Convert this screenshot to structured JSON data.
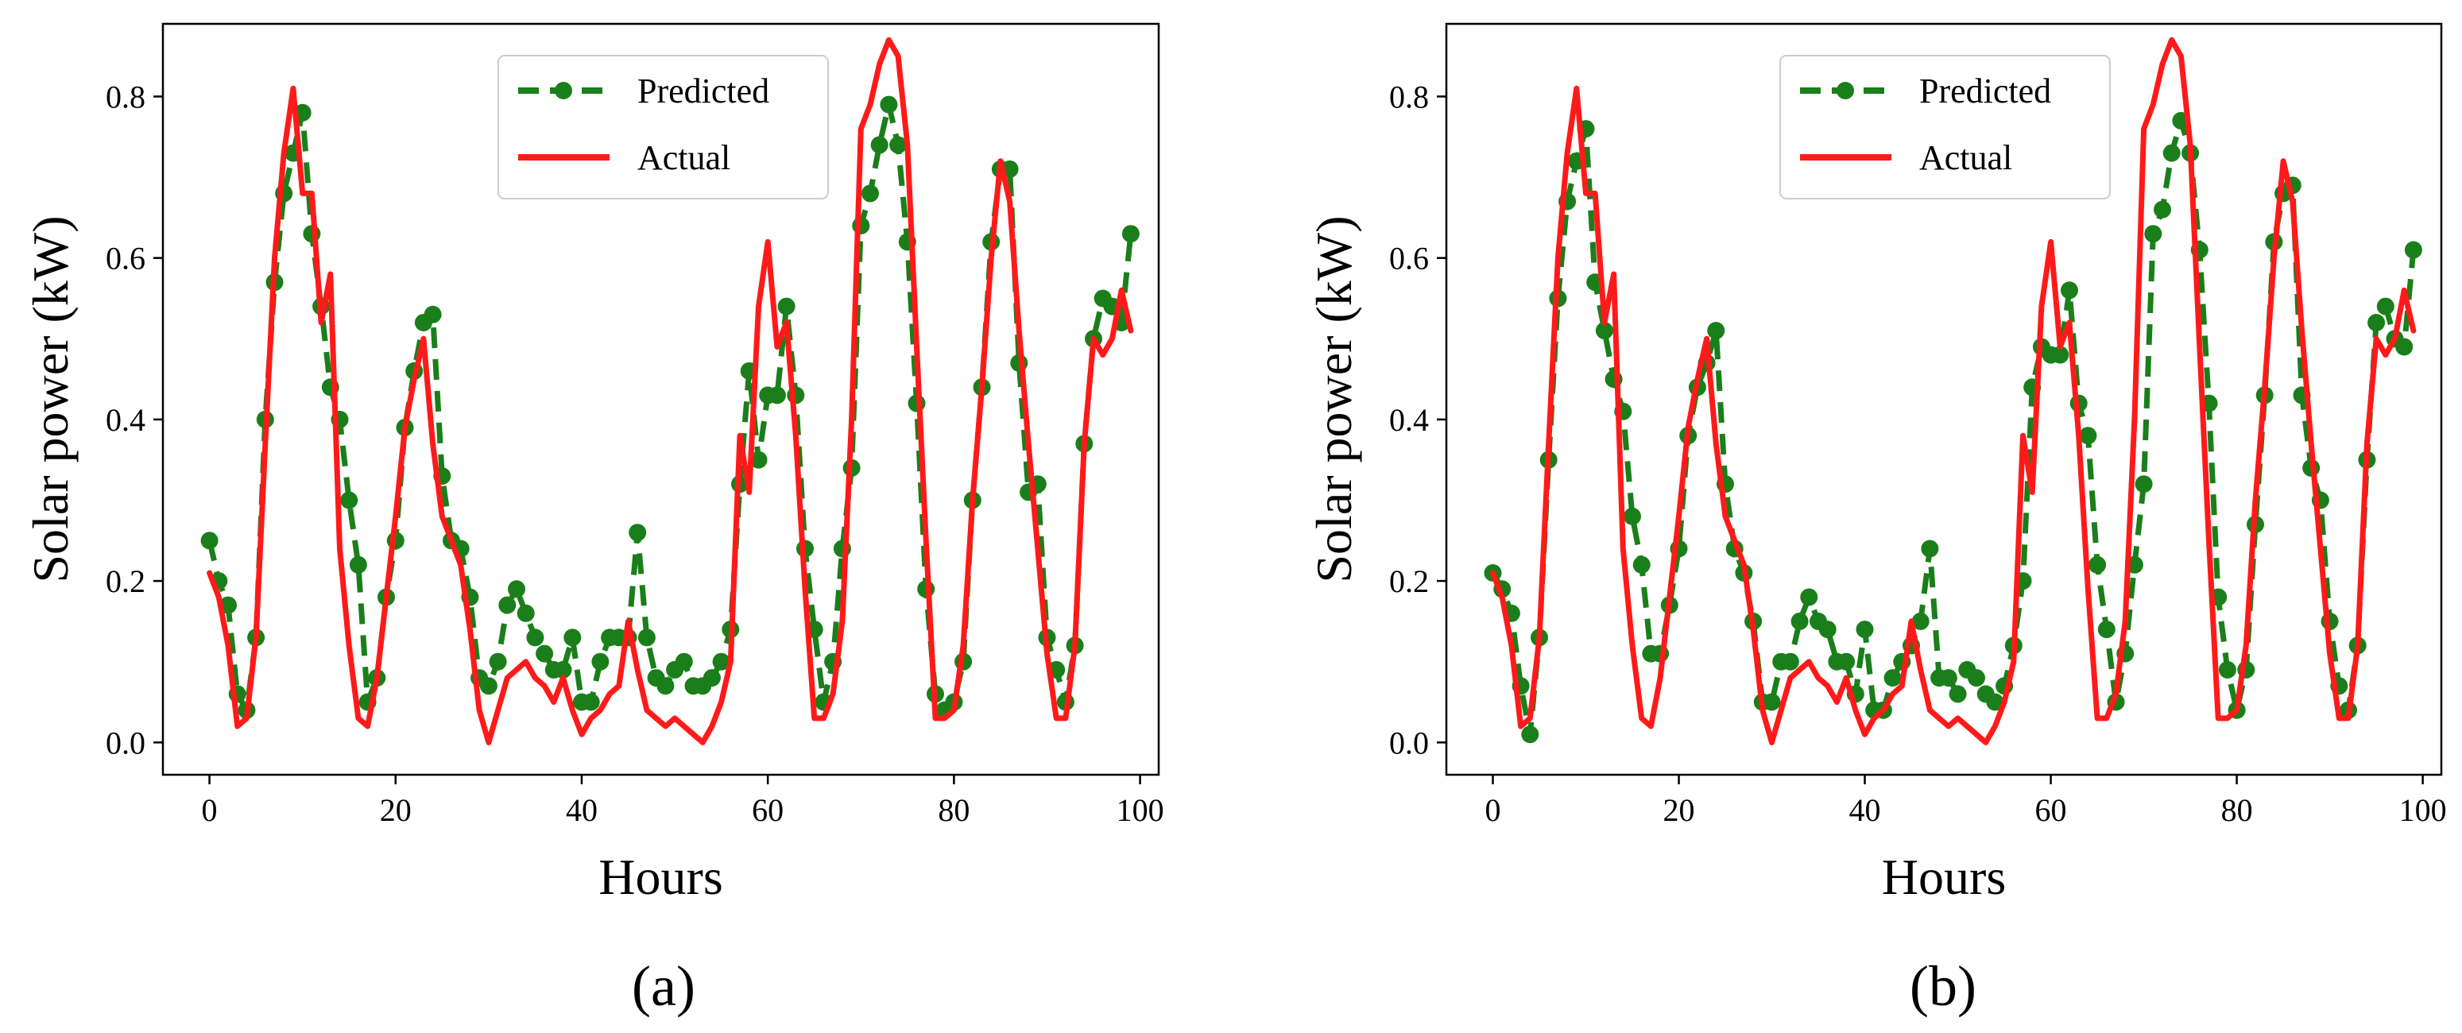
{
  "colors": {
    "predicted": "#1a7f1a",
    "actual": "#ff1a1a",
    "axis": "#000000"
  },
  "chart_data": [
    {
      "type": "line",
      "panel_label": "(a)",
      "xlabel": "Hours",
      "ylabel": "Solar power  (kW)",
      "xlim": [
        -5,
        102
      ],
      "ylim": [
        -0.04,
        0.89
      ],
      "xticks": [
        0,
        20,
        40,
        60,
        80,
        100
      ],
      "yticks": [
        0.0,
        0.2,
        0.4,
        0.6,
        0.8
      ],
      "legend": {
        "position": "top-center",
        "entries": [
          "Predicted",
          "Actual"
        ]
      },
      "series": [
        {
          "name": "Predicted",
          "style": "dashed-marker",
          "x": [
            0,
            1,
            2,
            3,
            4,
            5,
            6,
            7,
            8,
            9,
            10,
            11,
            12,
            13,
            14,
            15,
            16,
            17,
            18,
            19,
            20,
            21,
            22,
            23,
            24,
            25,
            26,
            27,
            28,
            29,
            30,
            31,
            32,
            33,
            34,
            35,
            36,
            37,
            38,
            39,
            40,
            41,
            42,
            43,
            44,
            45,
            46,
            47,
            48,
            49,
            50,
            51,
            52,
            53,
            54,
            55,
            56,
            57,
            58,
            59,
            60,
            61,
            62,
            63,
            64,
            65,
            66,
            67,
            68,
            69,
            70,
            71,
            72,
            73,
            74,
            75,
            76,
            77,
            78,
            79,
            80,
            81,
            82,
            83,
            84,
            85,
            86,
            87,
            88,
            89,
            90,
            91,
            92,
            93,
            94,
            95,
            96,
            97,
            98,
            99
          ],
          "y": [
            0.25,
            0.2,
            0.17,
            0.06,
            0.04,
            0.13,
            0.4,
            0.57,
            0.68,
            0.73,
            0.78,
            0.63,
            0.54,
            0.44,
            0.4,
            0.3,
            0.22,
            0.05,
            0.08,
            0.18,
            0.25,
            0.39,
            0.46,
            0.52,
            0.53,
            0.33,
            0.25,
            0.24,
            0.18,
            0.08,
            0.07,
            0.1,
            0.17,
            0.19,
            0.16,
            0.13,
            0.11,
            0.09,
            0.09,
            0.13,
            0.05,
            0.05,
            0.1,
            0.13,
            0.13,
            0.13,
            0.26,
            0.13,
            0.08,
            0.07,
            0.09,
            0.1,
            0.07,
            0.07,
            0.08,
            0.1,
            0.14,
            0.32,
            0.46,
            0.35,
            0.43,
            0.43,
            0.54,
            0.43,
            0.24,
            0.14,
            0.05,
            0.1,
            0.24,
            0.34,
            0.64,
            0.68,
            0.74,
            0.79,
            0.74,
            0.62,
            0.42,
            0.19,
            0.06,
            0.04,
            0.05,
            0.1,
            0.3,
            0.44,
            0.62,
            0.71,
            0.71,
            0.47,
            0.31,
            0.32,
            0.13,
            0.09,
            0.05,
            0.12,
            0.37,
            0.5,
            0.55,
            0.54,
            0.52,
            0.63
          ]
        },
        {
          "name": "Actual",
          "style": "solid",
          "x": [
            0,
            1,
            2,
            3,
            4,
            5,
            6,
            7,
            8,
            9,
            10,
            11,
            12,
            13,
            14,
            15,
            16,
            17,
            18,
            19,
            20,
            21,
            22,
            23,
            24,
            25,
            26,
            27,
            28,
            29,
            30,
            31,
            32,
            33,
            34,
            35,
            36,
            37,
            38,
            39,
            40,
            41,
            42,
            43,
            44,
            45,
            46,
            47,
            48,
            49,
            50,
            51,
            52,
            53,
            54,
            55,
            56,
            57,
            58,
            59,
            60,
            61,
            62,
            63,
            64,
            65,
            66,
            67,
            68,
            69,
            70,
            71,
            72,
            73,
            74,
            75,
            76,
            77,
            78,
            79,
            80,
            81,
            82,
            83,
            84,
            85,
            86,
            87,
            88,
            89,
            90,
            91,
            92,
            93,
            94,
            95,
            96,
            97,
            98,
            99
          ],
          "y": [
            0.21,
            0.18,
            0.12,
            0.02,
            0.03,
            0.13,
            0.37,
            0.6,
            0.73,
            0.81,
            0.68,
            0.68,
            0.52,
            0.58,
            0.24,
            0.12,
            0.03,
            0.02,
            0.08,
            0.18,
            0.28,
            0.39,
            0.45,
            0.5,
            0.37,
            0.28,
            0.25,
            0.22,
            0.14,
            0.04,
            0.0,
            0.04,
            0.08,
            0.09,
            0.1,
            0.08,
            0.07,
            0.05,
            0.08,
            0.04,
            0.01,
            0.03,
            0.04,
            0.06,
            0.07,
            0.15,
            0.09,
            0.04,
            0.03,
            0.02,
            0.03,
            0.02,
            0.01,
            0.0,
            0.02,
            0.05,
            0.1,
            0.38,
            0.31,
            0.54,
            0.62,
            0.49,
            0.52,
            0.38,
            0.19,
            0.03,
            0.03,
            0.06,
            0.15,
            0.4,
            0.76,
            0.79,
            0.84,
            0.87,
            0.85,
            0.74,
            0.49,
            0.25,
            0.03,
            0.03,
            0.04,
            0.12,
            0.3,
            0.44,
            0.6,
            0.72,
            0.67,
            0.51,
            0.37,
            0.24,
            0.11,
            0.03,
            0.03,
            0.12,
            0.37,
            0.5,
            0.48,
            0.5,
            0.56,
            0.51
          ]
        }
      ]
    },
    {
      "type": "line",
      "panel_label": "(b)",
      "xlabel": "Hours",
      "ylabel": "Solar power  (kW)",
      "xlim": [
        -5,
        102
      ],
      "ylim": [
        -0.04,
        0.89
      ],
      "xticks": [
        0,
        20,
        40,
        60,
        80,
        100
      ],
      "yticks": [
        0.0,
        0.2,
        0.4,
        0.6,
        0.8
      ],
      "legend": {
        "position": "top-center",
        "entries": [
          "Predicted",
          "Actual"
        ]
      },
      "series": [
        {
          "name": "Predicted",
          "style": "dashed-marker",
          "x": [
            0,
            1,
            2,
            3,
            4,
            5,
            6,
            7,
            8,
            9,
            10,
            11,
            12,
            13,
            14,
            15,
            16,
            17,
            18,
            19,
            20,
            21,
            22,
            23,
            24,
            25,
            26,
            27,
            28,
            29,
            30,
            31,
            32,
            33,
            34,
            35,
            36,
            37,
            38,
            39,
            40,
            41,
            42,
            43,
            44,
            45,
            46,
            47,
            48,
            49,
            50,
            51,
            52,
            53,
            54,
            55,
            56,
            57,
            58,
            59,
            60,
            61,
            62,
            63,
            64,
            65,
            66,
            67,
            68,
            69,
            70,
            71,
            72,
            73,
            74,
            75,
            76,
            77,
            78,
            79,
            80,
            81,
            82,
            83,
            84,
            85,
            86,
            87,
            88,
            89,
            90,
            91,
            92,
            93,
            94,
            95,
            96,
            97,
            98,
            99
          ],
          "y": [
            0.21,
            0.19,
            0.16,
            0.07,
            0.01,
            0.13,
            0.35,
            0.55,
            0.67,
            0.72,
            0.76,
            0.57,
            0.51,
            0.45,
            0.41,
            0.28,
            0.22,
            0.11,
            0.11,
            0.17,
            0.24,
            0.38,
            0.44,
            0.47,
            0.51,
            0.32,
            0.24,
            0.21,
            0.15,
            0.05,
            0.05,
            0.1,
            0.1,
            0.15,
            0.18,
            0.15,
            0.14,
            0.1,
            0.1,
            0.06,
            0.14,
            0.04,
            0.04,
            0.08,
            0.1,
            0.12,
            0.15,
            0.24,
            0.08,
            0.08,
            0.06,
            0.09,
            0.08,
            0.06,
            0.05,
            0.07,
            0.12,
            0.2,
            0.44,
            0.49,
            0.48,
            0.48,
            0.56,
            0.42,
            0.38,
            0.22,
            0.14,
            0.05,
            0.11,
            0.22,
            0.32,
            0.63,
            0.66,
            0.73,
            0.77,
            0.73,
            0.61,
            0.42,
            0.18,
            0.09,
            0.04,
            0.09,
            0.27,
            0.43,
            0.62,
            0.68,
            0.69,
            0.43,
            0.34,
            0.3,
            0.15,
            0.07,
            0.04,
            0.12,
            0.35,
            0.52,
            0.54,
            0.5,
            0.49,
            0.61
          ]
        },
        {
          "name": "Actual",
          "style": "solid",
          "x": [
            0,
            1,
            2,
            3,
            4,
            5,
            6,
            7,
            8,
            9,
            10,
            11,
            12,
            13,
            14,
            15,
            16,
            17,
            18,
            19,
            20,
            21,
            22,
            23,
            24,
            25,
            26,
            27,
            28,
            29,
            30,
            31,
            32,
            33,
            34,
            35,
            36,
            37,
            38,
            39,
            40,
            41,
            42,
            43,
            44,
            45,
            46,
            47,
            48,
            49,
            50,
            51,
            52,
            53,
            54,
            55,
            56,
            57,
            58,
            59,
            60,
            61,
            62,
            63,
            64,
            65,
            66,
            67,
            68,
            69,
            70,
            71,
            72,
            73,
            74,
            75,
            76,
            77,
            78,
            79,
            80,
            81,
            82,
            83,
            84,
            85,
            86,
            87,
            88,
            89,
            90,
            91,
            92,
            93,
            94,
            95,
            96,
            97,
            98,
            99
          ],
          "y": [
            0.21,
            0.18,
            0.12,
            0.02,
            0.03,
            0.13,
            0.37,
            0.6,
            0.73,
            0.81,
            0.68,
            0.68,
            0.52,
            0.58,
            0.24,
            0.12,
            0.03,
            0.02,
            0.08,
            0.18,
            0.28,
            0.39,
            0.45,
            0.5,
            0.37,
            0.28,
            0.25,
            0.22,
            0.14,
            0.04,
            0.0,
            0.04,
            0.08,
            0.09,
            0.1,
            0.08,
            0.07,
            0.05,
            0.08,
            0.04,
            0.01,
            0.03,
            0.04,
            0.06,
            0.07,
            0.15,
            0.09,
            0.04,
            0.03,
            0.02,
            0.03,
            0.02,
            0.01,
            0.0,
            0.02,
            0.05,
            0.1,
            0.38,
            0.31,
            0.54,
            0.62,
            0.49,
            0.52,
            0.38,
            0.19,
            0.03,
            0.03,
            0.06,
            0.15,
            0.4,
            0.76,
            0.79,
            0.84,
            0.87,
            0.85,
            0.74,
            0.49,
            0.25,
            0.03,
            0.03,
            0.04,
            0.12,
            0.3,
            0.44,
            0.6,
            0.72,
            0.67,
            0.51,
            0.37,
            0.24,
            0.11,
            0.03,
            0.03,
            0.12,
            0.37,
            0.5,
            0.48,
            0.5,
            0.56,
            0.51
          ]
        }
      ]
    }
  ]
}
